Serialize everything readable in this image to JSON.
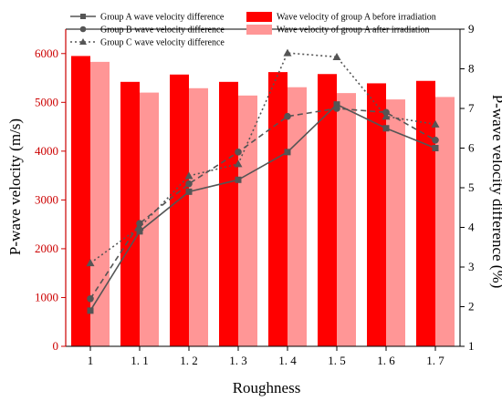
{
  "chart_data": {
    "type": "bar",
    "categories": [
      "1",
      "1. 1",
      "1. 2",
      "1. 3",
      "1. 4",
      "1. 5",
      "1. 6",
      "1. 7"
    ],
    "xlabel": "Roughness",
    "ylabel_left": "P-wave velocity (m/s)",
    "ylabel_right": "P-wave velocity difference (%)",
    "ylim_left": [
      0,
      6500
    ],
    "yticks_left": [
      0,
      1000,
      2000,
      3000,
      4000,
      5000,
      6000
    ],
    "ylim_right": [
      1,
      9
    ],
    "yticks_right": [
      1,
      2,
      3,
      4,
      5,
      6,
      7,
      8,
      9
    ],
    "bar_series": [
      {
        "name": "Wave velocity of group A before irradiation",
        "color": "#ff0000",
        "values": [
          5950,
          5420,
          5570,
          5420,
          5620,
          5580,
          5390,
          5440
        ]
      },
      {
        "name": "Wave velocity of group A after irradiation",
        "color": "#ff9696",
        "values": [
          5830,
          5200,
          5290,
          5140,
          5310,
          5190,
          5060,
          5110
        ]
      }
    ],
    "line_series": [
      {
        "name": "Group A wave  velocity difference",
        "marker": "square",
        "dash": "solid",
        "values": [
          1.9,
          3.9,
          4.9,
          5.2,
          5.9,
          7.1,
          6.5,
          6.0
        ]
      },
      {
        "name": "Group B wave  velocity difference",
        "marker": "circle",
        "dash": "dash",
        "values": [
          2.2,
          4.1,
          5.1,
          5.9,
          6.8,
          7.0,
          6.9,
          6.2
        ]
      },
      {
        "name": "Group C wave  velocity difference",
        "marker": "triangle",
        "dash": "dot",
        "values": [
          3.1,
          4.0,
          5.3,
          5.6,
          8.4,
          8.3,
          6.8,
          6.6
        ]
      }
    ],
    "left_axis_color": "#cc0000",
    "line_color": "#555555",
    "grid": false,
    "legend_position": "top"
  }
}
